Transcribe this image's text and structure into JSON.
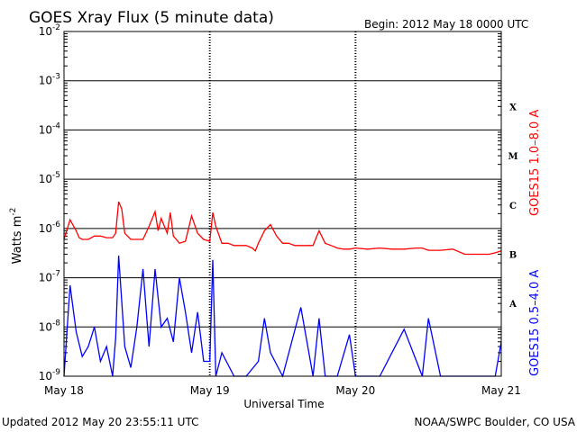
{
  "header": {
    "title": "GOES Xray Flux (5 minute data)",
    "begin": "Begin:  2012 May 18 0000 UTC"
  },
  "footer": {
    "updated": "Updated 2012 May 20 23:55:11 UTC",
    "credit": "NOAA/SWPC Boulder, CO USA"
  },
  "chart_data": {
    "type": "line",
    "title": "GOES Xray Flux (5 minute data)",
    "xlabel": "Universal Time",
    "ylabel": "Watts m",
    "ylabel_sup": "-2",
    "y_scale": "log",
    "ylim": [
      1e-09,
      0.01
    ],
    "xlim": [
      "2012-05-18 00:00",
      "2012-05-21 00:00"
    ],
    "x_ticks": [
      "May 18",
      "May 19",
      "May 20",
      "May 21"
    ],
    "y_ticks": [
      {
        "value": 1e-09,
        "base": "10",
        "exp": "-9"
      },
      {
        "value": 1e-08,
        "base": "10",
        "exp": "-8"
      },
      {
        "value": 1e-07,
        "base": "10",
        "exp": "-7"
      },
      {
        "value": 1e-06,
        "base": "10",
        "exp": "-6"
      },
      {
        "value": 1e-05,
        "base": "10",
        "exp": "-5"
      },
      {
        "value": 0.0001,
        "base": "10",
        "exp": "-4"
      },
      {
        "value": 0.001,
        "base": "10",
        "exp": "-3"
      },
      {
        "value": 0.01,
        "base": "10",
        "exp": "-2"
      }
    ],
    "flare_classes": [
      {
        "label": "A",
        "value": 3e-08
      },
      {
        "label": "B",
        "value": 3e-07
      },
      {
        "label": "C",
        "value": 3e-06
      },
      {
        "label": "M",
        "value": 3e-05
      },
      {
        "label": "X",
        "value": 0.0003
      }
    ],
    "grid": true,
    "series": [
      {
        "name": "GOES15 1.0–8.0 A",
        "color": "#ff0000",
        "x": [
          "2012-05-18 00:00",
          "2012-05-18 01:00",
          "2012-05-18 02:00",
          "2012-05-18 02:30",
          "2012-05-18 03:00",
          "2012-05-18 04:00",
          "2012-05-18 05:00",
          "2012-05-18 06:00",
          "2012-05-18 07:00",
          "2012-05-18 08:00",
          "2012-05-18 08:30",
          "2012-05-18 09:00",
          "2012-05-18 09:30",
          "2012-05-18 10:00",
          "2012-05-18 11:00",
          "2012-05-18 12:00",
          "2012-05-18 13:00",
          "2012-05-18 14:00",
          "2012-05-18 15:00",
          "2012-05-18 15:30",
          "2012-05-18 16:00",
          "2012-05-18 17:00",
          "2012-05-18 17:30",
          "2012-05-18 18:00",
          "2012-05-18 18:30",
          "2012-05-18 19:00",
          "2012-05-18 20:00",
          "2012-05-18 21:00",
          "2012-05-18 22:00",
          "2012-05-18 23:00",
          "2012-05-19 00:00",
          "2012-05-19 00:30",
          "2012-05-19 01:00",
          "2012-05-19 02:00",
          "2012-05-19 03:00",
          "2012-05-19 04:00",
          "2012-05-19 05:00",
          "2012-05-19 06:00",
          "2012-05-19 07:00",
          "2012-05-19 07:30",
          "2012-05-19 08:00",
          "2012-05-19 09:00",
          "2012-05-19 10:00",
          "2012-05-19 11:00",
          "2012-05-19 12:00",
          "2012-05-19 13:00",
          "2012-05-19 14:00",
          "2012-05-19 14:30",
          "2012-05-19 15:00",
          "2012-05-19 16:00",
          "2012-05-19 17:00",
          "2012-05-19 18:00",
          "2012-05-19 19:00",
          "2012-05-19 20:00",
          "2012-05-19 21:00",
          "2012-05-19 22:00",
          "2012-05-19 23:00",
          "2012-05-20 00:00",
          "2012-05-20 02:00",
          "2012-05-20 04:00",
          "2012-05-20 06:00",
          "2012-05-20 08:00",
          "2012-05-20 10:00",
          "2012-05-20 11:00",
          "2012-05-20 12:00",
          "2012-05-20 14:00",
          "2012-05-20 16:00",
          "2012-05-20 18:00",
          "2012-05-20 20:00",
          "2012-05-20 22:00",
          "2012-05-20 23:00",
          "2012-05-21 00:00"
        ],
        "y": [
          6e-07,
          1.5e-06,
          9e-07,
          6.5e-07,
          6e-07,
          6e-07,
          7e-07,
          7e-07,
          6.5e-07,
          6.5e-07,
          8e-07,
          3.5e-06,
          2.5e-06,
          8e-07,
          6e-07,
          6e-07,
          6e-07,
          1.1e-06,
          2.2e-06,
          9e-07,
          1.6e-06,
          8e-07,
          2.1e-06,
          7e-07,
          6e-07,
          5e-07,
          5.5e-07,
          1.8e-06,
          8e-07,
          6e-07,
          5.5e-07,
          2.1e-06,
          1.1e-06,
          5e-07,
          5e-07,
          4.5e-07,
          4.5e-07,
          4.5e-07,
          4e-07,
          3.5e-07,
          5e-07,
          9e-07,
          1.2e-06,
          7e-07,
          5e-07,
          5e-07,
          4.5e-07,
          4.5e-07,
          4.5e-07,
          4.5e-07,
          4.5e-07,
          9e-07,
          5e-07,
          4.5e-07,
          4e-07,
          3.8e-07,
          3.8e-07,
          4e-07,
          3.8e-07,
          4e-07,
          3.8e-07,
          3.8e-07,
          4e-07,
          4e-07,
          3.6e-07,
          3.6e-07,
          3.8e-07,
          3e-07,
          3e-07,
          3e-07,
          3.2e-07,
          3.5e-07
        ]
      },
      {
        "name": "GOES15 0.5–4.0 A",
        "color": "#0000ff",
        "x": [
          "2012-05-18 00:00",
          "2012-05-18 01:00",
          "2012-05-18 02:00",
          "2012-05-18 03:00",
          "2012-05-18 04:00",
          "2012-05-18 05:00",
          "2012-05-18 06:00",
          "2012-05-18 07:00",
          "2012-05-18 08:00",
          "2012-05-18 08:30",
          "2012-05-18 09:00",
          "2012-05-18 10:00",
          "2012-05-18 11:00",
          "2012-05-18 12:00",
          "2012-05-18 13:00",
          "2012-05-18 14:00",
          "2012-05-18 15:00",
          "2012-05-18 16:00",
          "2012-05-18 17:00",
          "2012-05-18 18:00",
          "2012-05-18 19:00",
          "2012-05-18 20:00",
          "2012-05-18 21:00",
          "2012-05-18 22:00",
          "2012-05-18 23:00",
          "2012-05-19 00:00",
          "2012-05-19 00:30",
          "2012-05-19 01:00",
          "2012-05-19 02:00",
          "2012-05-19 04:00",
          "2012-05-19 06:00",
          "2012-05-19 08:00",
          "2012-05-19 09:00",
          "2012-05-19 10:00",
          "2012-05-19 12:00",
          "2012-05-19 15:00",
          "2012-05-19 17:00",
          "2012-05-19 18:00",
          "2012-05-19 19:00",
          "2012-05-19 21:00",
          "2012-05-19 23:00",
          "2012-05-20 00:00",
          "2012-05-20 04:00",
          "2012-05-20 08:00",
          "2012-05-20 11:00",
          "2012-05-20 12:00",
          "2012-05-20 14:00",
          "2012-05-20 16:00",
          "2012-05-20 20:00",
          "2012-05-20 23:00",
          "2012-05-21 00:00"
        ],
        "y": [
          1e-09,
          7e-08,
          8e-09,
          2.5e-09,
          4e-09,
          1e-08,
          2e-09,
          4e-09,
          1e-09,
          6e-09,
          2.8e-07,
          4e-09,
          1.5e-09,
          1e-08,
          1.5e-07,
          4e-09,
          1.5e-07,
          1e-08,
          1.5e-08,
          5e-09,
          1e-07,
          2e-08,
          3e-09,
          2e-08,
          2e-09,
          2e-09,
          2.3e-07,
          1e-09,
          3e-09,
          1e-09,
          1e-09,
          2e-09,
          1.5e-08,
          3e-09,
          1e-09,
          2.5e-08,
          1e-09,
          1.5e-08,
          1e-09,
          1e-09,
          7e-09,
          1e-09,
          1e-09,
          9e-09,
          1e-09,
          1.5e-08,
          1e-09,
          1e-09,
          1e-09,
          1e-09,
          5e-09
        ]
      }
    ]
  }
}
